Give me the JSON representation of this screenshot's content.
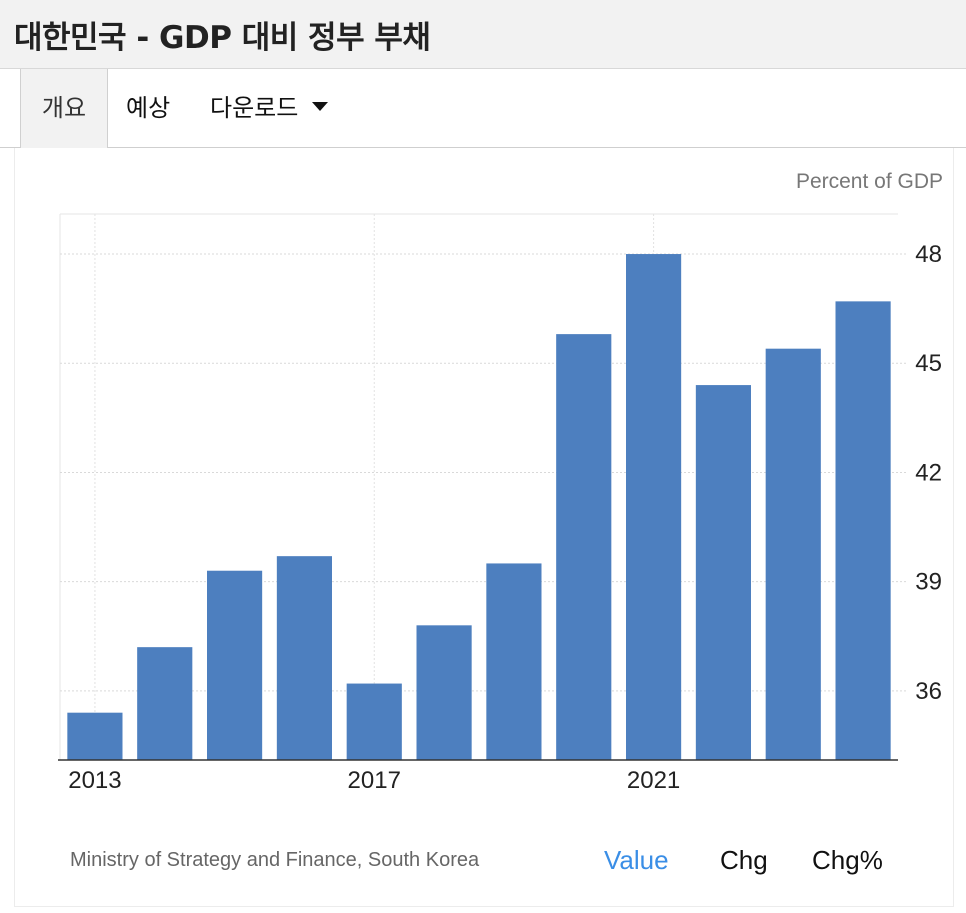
{
  "header": {
    "title": "대한민국 - GDP 대비 정부 부채"
  },
  "tabs": [
    {
      "label": "개요",
      "active": true
    },
    {
      "label": "예상",
      "active": false
    },
    {
      "label": "다운로드",
      "active": false,
      "icon": "caret-down-icon"
    }
  ],
  "chart_data": {
    "type": "bar",
    "unit_label": "Percent of GDP",
    "x": [
      2013,
      2014,
      2015,
      2016,
      2017,
      2018,
      2019,
      2020,
      2021,
      2022,
      2023,
      2024
    ],
    "values": [
      35.4,
      37.2,
      39.3,
      39.7,
      36.2,
      37.8,
      39.5,
      45.8,
      48.0,
      44.4,
      45.4,
      46.7
    ],
    "x_tick_labels": [
      "2013",
      "2017",
      "2021"
    ],
    "y_ticks": [
      36,
      39,
      42,
      45,
      48
    ],
    "ylim": [
      34.1,
      49.1
    ],
    "y_axis_position": "right",
    "grid": true,
    "bar_color": "#4d7fbf"
  },
  "footer": {
    "source": "Ministry of Strategy and Finance, South Korea",
    "tabs": [
      {
        "label": "Value",
        "active": true
      },
      {
        "label": "Chg",
        "active": false
      },
      {
        "label": "Chg%",
        "active": false
      }
    ]
  }
}
